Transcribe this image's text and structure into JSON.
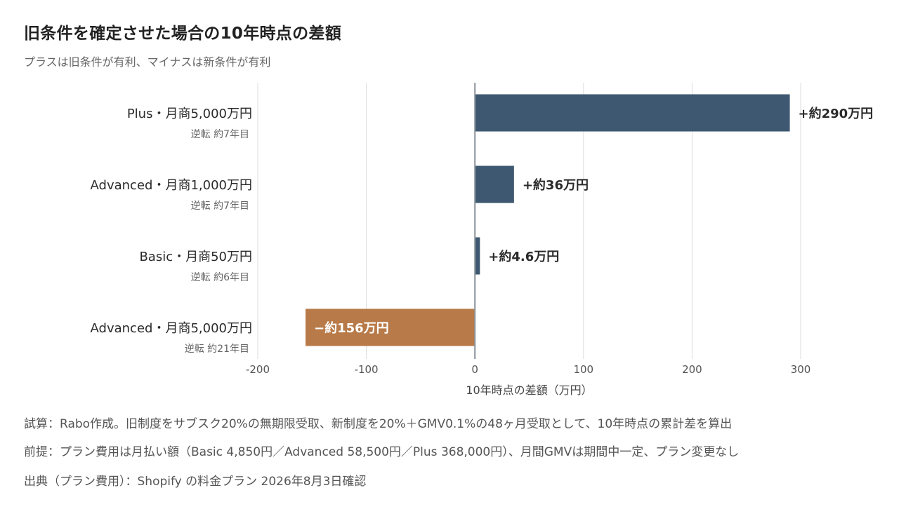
{
  "header": {
    "title": "旧条件を確定させた場合の10年時点の差額",
    "subtitle": "プラスは旧条件が有利、マイナスは新条件が有利"
  },
  "chart_data": {
    "type": "bar",
    "orientation": "horizontal",
    "categories": [
      "Plus・月商5,000万円",
      "Advanced・月商1,000万円",
      "Basic・月商50万円",
      "Advanced・月商5,000万円"
    ],
    "sublabels": [
      "逆転 約7年目",
      "逆転 約7年目",
      "逆転 約6年目",
      "逆転 約21年目"
    ],
    "values": [
      290,
      36,
      4.6,
      -156
    ],
    "data_labels": [
      "+約290万円",
      "+約36万円",
      "+約4.6万円",
      "−約156万円"
    ],
    "xlabel": "10年時点の差額（万円）",
    "xlim": [
      -200,
      310
    ],
    "xticks": [
      -200,
      -100,
      0,
      100,
      200,
      300
    ],
    "xtick_labels": [
      "-200",
      "-100",
      "0",
      "100",
      "200",
      "300"
    ],
    "grid": "vertical",
    "colors": {
      "positive": "#3d5870",
      "negative": "#b87a48",
      "zero_line": "#8a949c",
      "grid": "#dedede"
    }
  },
  "notes": {
    "calc": "試算：Rabo作成。旧制度をサブスク20%の無期限受取、新制度を20%＋GMV0.1%の48ヶ月受取として、10年時点の累計差を算出",
    "premise": "前提：プラン費用は月払い額（Basic 4,850円／Advanced 58,500円／Plus 368,000円）、月間GMVは期間中一定、プラン変更なし",
    "source": "出典（プラン費用）：Shopify の料金プラン 2026年8月3日確認"
  }
}
